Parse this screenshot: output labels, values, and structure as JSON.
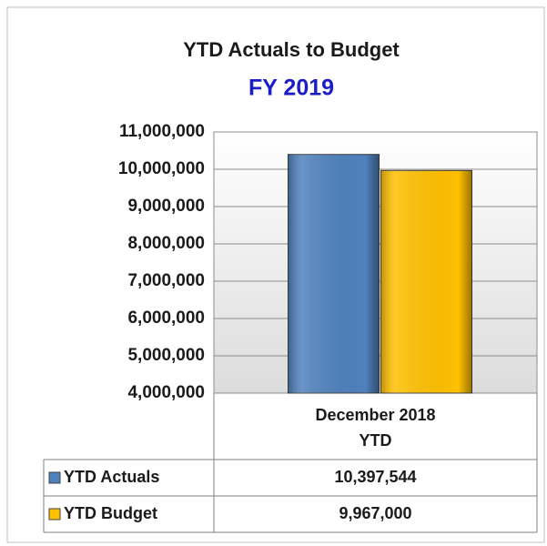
{
  "chart_data": {
    "type": "bar",
    "title": "YTD Actuals to Budget",
    "subtitle": "FY 2019",
    "categories": [
      "December 2018 YTD"
    ],
    "series": [
      {
        "name": "YTD Actuals",
        "color": "#4f81bd",
        "values": [
          10397544
        ],
        "value_labels": [
          "10,397,544"
        ]
      },
      {
        "name": "YTD Budget",
        "color": "#ffc000",
        "values": [
          9967000
        ],
        "value_labels": [
          "9,967,000"
        ]
      }
    ],
    "ylim": [
      4000000,
      11000000
    ],
    "yticks": [
      {
        "value": 4000000,
        "label": "4,000,000"
      },
      {
        "value": 5000000,
        "label": "5,000,000"
      },
      {
        "value": 6000000,
        "label": "6,000,000"
      },
      {
        "value": 7000000,
        "label": "7,000,000"
      },
      {
        "value": 8000000,
        "label": "8,000,000"
      },
      {
        "value": 9000000,
        "label": "9,000,000"
      },
      {
        "value": 10000000,
        "label": "10,000,000"
      },
      {
        "value": 11000000,
        "label": "11,000,000"
      }
    ],
    "grid": true
  }
}
